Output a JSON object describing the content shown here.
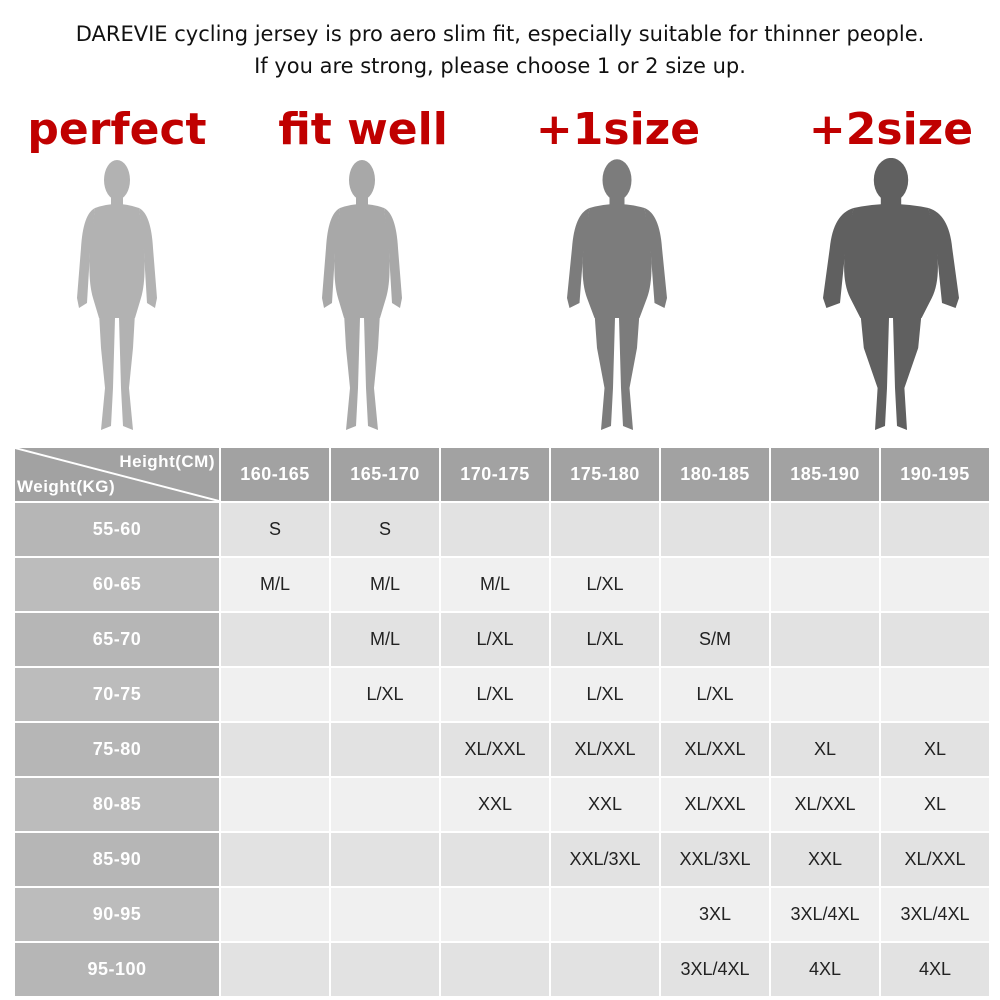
{
  "intro": {
    "line1": "DAREVIE cycling jersey is pro aero slim fit, especially suitable for thinner people.",
    "line2": "If you are strong, please choose 1 or 2 size up."
  },
  "fit_labels": [
    "perfect",
    "fit well",
    "+1size",
    "+2size"
  ],
  "colors": {
    "label_red": "#c00000",
    "figure_shades": [
      "#b2b2b2",
      "#a8a8a8",
      "#7c7c7c",
      "#606060"
    ]
  },
  "table": {
    "corner_height": "Height(CM)",
    "corner_weight": "Weight(KG)",
    "heights": [
      "160-165",
      "165-170",
      "170-175",
      "175-180",
      "180-185",
      "185-190",
      "190-195"
    ],
    "rows": [
      {
        "weight": "55-60",
        "sizes": [
          "S",
          "S",
          "",
          "",
          "",
          "",
          ""
        ]
      },
      {
        "weight": "60-65",
        "sizes": [
          "M/L",
          "M/L",
          "M/L",
          "L/XL",
          "",
          "",
          ""
        ]
      },
      {
        "weight": "65-70",
        "sizes": [
          "",
          "M/L",
          "L/XL",
          "L/XL",
          "S/M",
          "",
          ""
        ]
      },
      {
        "weight": "70-75",
        "sizes": [
          "",
          "L/XL",
          "L/XL",
          "L/XL",
          "L/XL",
          "",
          ""
        ]
      },
      {
        "weight": "75-80",
        "sizes": [
          "",
          "",
          "XL/XXL",
          "XL/XXL",
          "XL/XXL",
          "XL",
          "XL"
        ]
      },
      {
        "weight": "80-85",
        "sizes": [
          "",
          "",
          "XXL",
          "XXL",
          "XL/XXL",
          "XL/XXL",
          "XL"
        ]
      },
      {
        "weight": "85-90",
        "sizes": [
          "",
          "",
          "",
          "XXL/3XL",
          "XXL/3XL",
          "XXL",
          "XL/XXL"
        ]
      },
      {
        "weight": "90-95",
        "sizes": [
          "",
          "",
          "",
          "",
          "3XL",
          "3XL/4XL",
          "3XL/4XL"
        ]
      },
      {
        "weight": "95-100",
        "sizes": [
          "",
          "",
          "",
          "",
          "3XL/4XL",
          "4XL",
          "4XL"
        ]
      }
    ]
  }
}
